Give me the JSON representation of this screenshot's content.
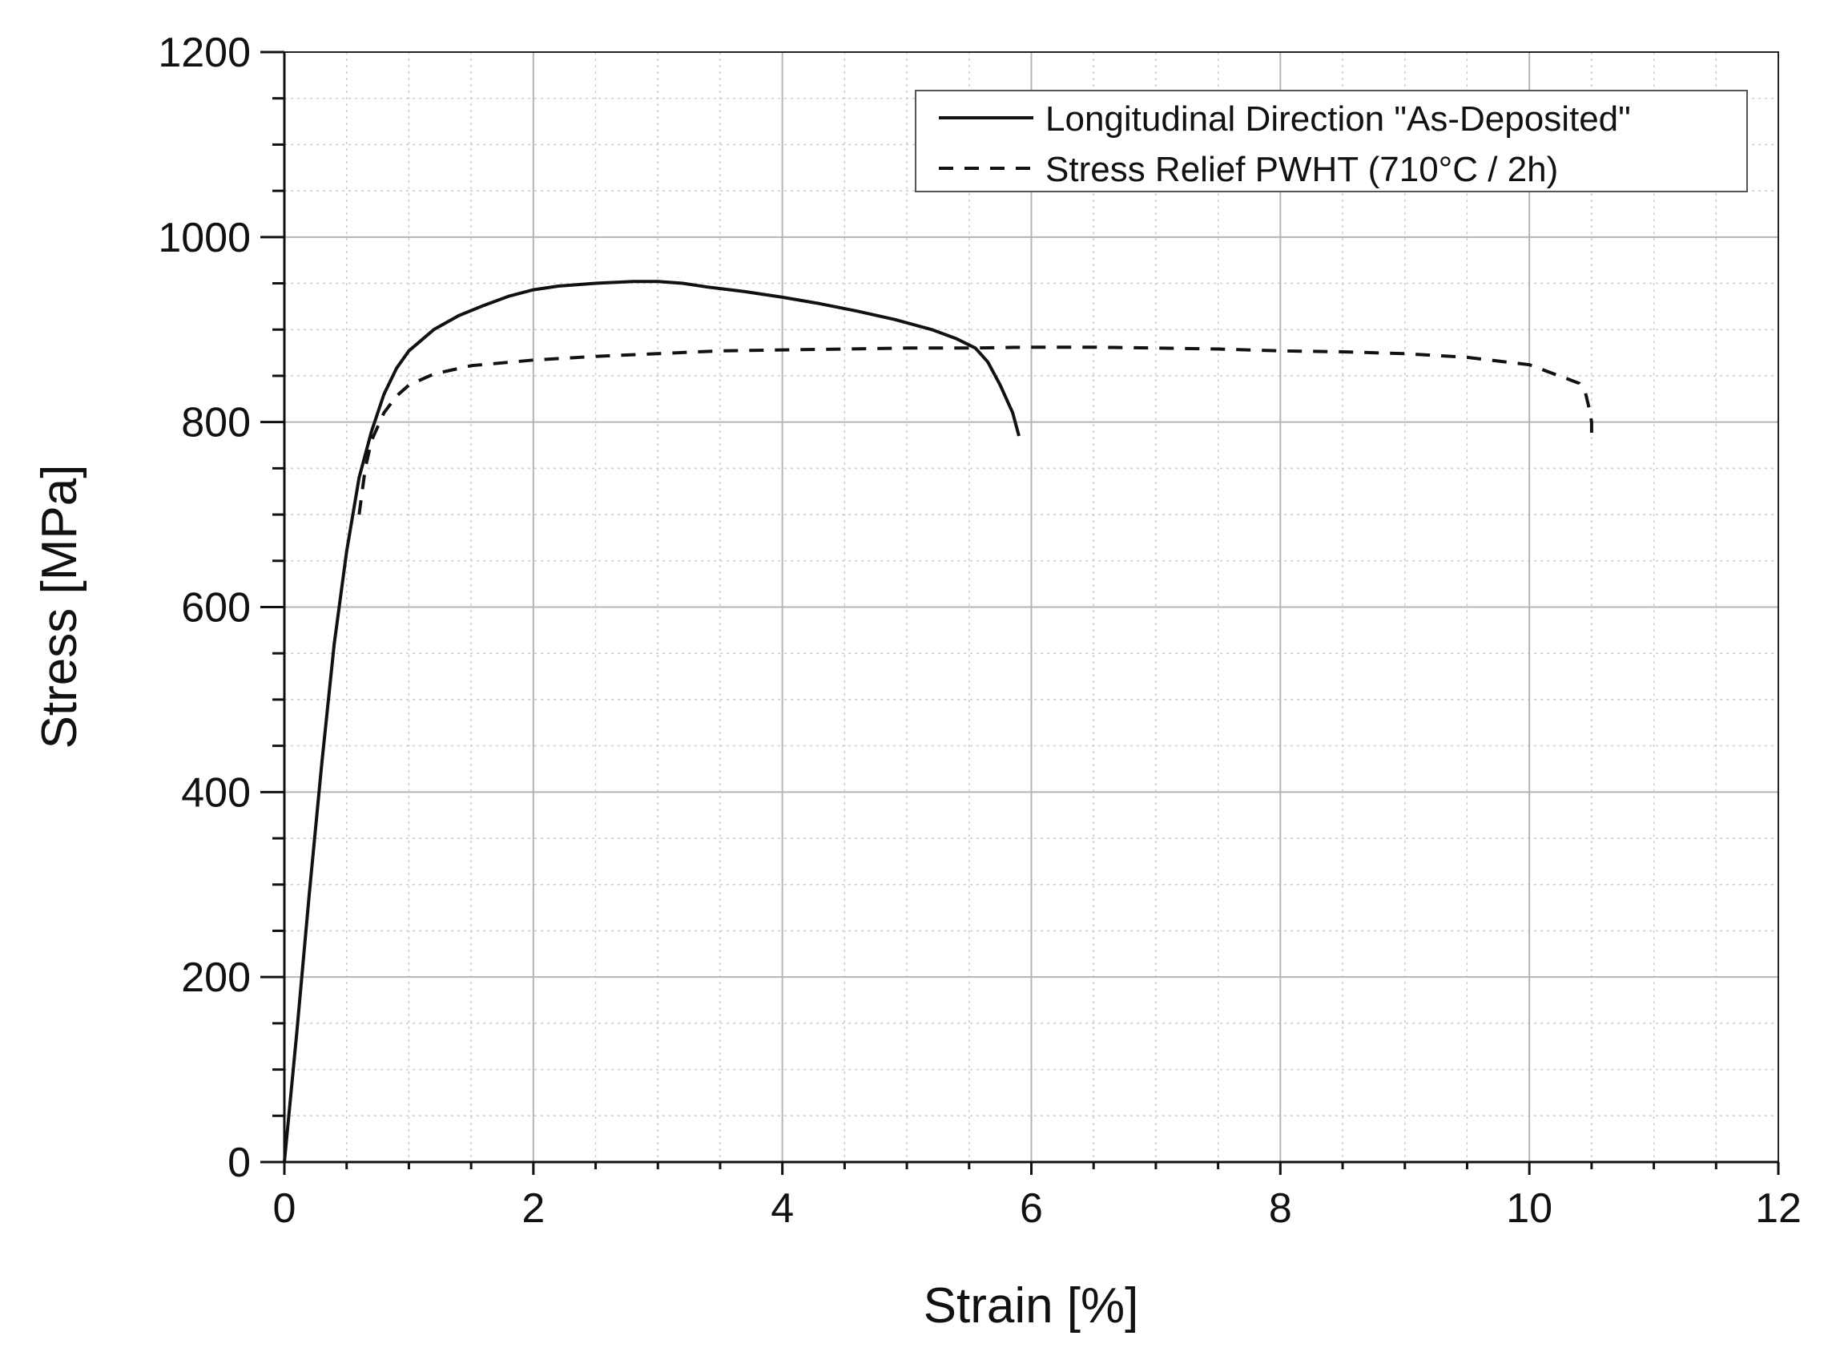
{
  "chart_data": {
    "type": "line",
    "title": "",
    "xlabel": "Strain [%]",
    "ylabel": "Stress [MPa]",
    "xlim": [
      0,
      12
    ],
    "ylim": [
      0,
      1200
    ],
    "x_ticks": [
      0,
      2,
      4,
      6,
      8,
      10,
      12
    ],
    "y_ticks": [
      0,
      200,
      400,
      600,
      800,
      1000,
      1200
    ],
    "grid": true,
    "minor_grid": true,
    "legend_position": "top-right",
    "series": [
      {
        "name": "Longitudinal Direction \"As-Deposited\"",
        "style": "solid",
        "color": "#111111",
        "points": [
          [
            0,
            0
          ],
          [
            0.1,
            140
          ],
          [
            0.2,
            290
          ],
          [
            0.3,
            430
          ],
          [
            0.4,
            560
          ],
          [
            0.5,
            660
          ],
          [
            0.6,
            740
          ],
          [
            0.7,
            790
          ],
          [
            0.8,
            830
          ],
          [
            0.9,
            858
          ],
          [
            1.0,
            877
          ],
          [
            1.2,
            900
          ],
          [
            1.4,
            915
          ],
          [
            1.6,
            926
          ],
          [
            1.8,
            936
          ],
          [
            2.0,
            943
          ],
          [
            2.2,
            947
          ],
          [
            2.5,
            950
          ],
          [
            2.8,
            952
          ],
          [
            3.0,
            952
          ],
          [
            3.2,
            950
          ],
          [
            3.4,
            946
          ],
          [
            3.7,
            941
          ],
          [
            4.0,
            935
          ],
          [
            4.3,
            928
          ],
          [
            4.6,
            920
          ],
          [
            4.9,
            911
          ],
          [
            5.2,
            900
          ],
          [
            5.4,
            890
          ],
          [
            5.55,
            880
          ],
          [
            5.65,
            865
          ],
          [
            5.75,
            840
          ],
          [
            5.85,
            810
          ],
          [
            5.9,
            785
          ]
        ]
      },
      {
        "name": "Stress Relief PWHT (710°C / 2h)",
        "style": "dashed",
        "color": "#111111",
        "points": [
          [
            0.6,
            700
          ],
          [
            0.65,
            750
          ],
          [
            0.7,
            780
          ],
          [
            0.8,
            810
          ],
          [
            0.9,
            828
          ],
          [
            1.0,
            840
          ],
          [
            1.2,
            852
          ],
          [
            1.5,
            861
          ],
          [
            2.0,
            867
          ],
          [
            2.5,
            871
          ],
          [
            3.0,
            874
          ],
          [
            3.5,
            877
          ],
          [
            4.0,
            878
          ],
          [
            4.5,
            879
          ],
          [
            5.0,
            880
          ],
          [
            5.5,
            880
          ],
          [
            6.0,
            881
          ],
          [
            6.5,
            881
          ],
          [
            7.0,
            880
          ],
          [
            7.5,
            879
          ],
          [
            8.0,
            877
          ],
          [
            8.5,
            876
          ],
          [
            9.0,
            874
          ],
          [
            9.5,
            870
          ],
          [
            10.0,
            862
          ],
          [
            10.2,
            852
          ],
          [
            10.4,
            842
          ],
          [
            10.45,
            832
          ],
          [
            10.48,
            815
          ],
          [
            10.5,
            800
          ],
          [
            10.5,
            780
          ]
        ]
      }
    ]
  }
}
